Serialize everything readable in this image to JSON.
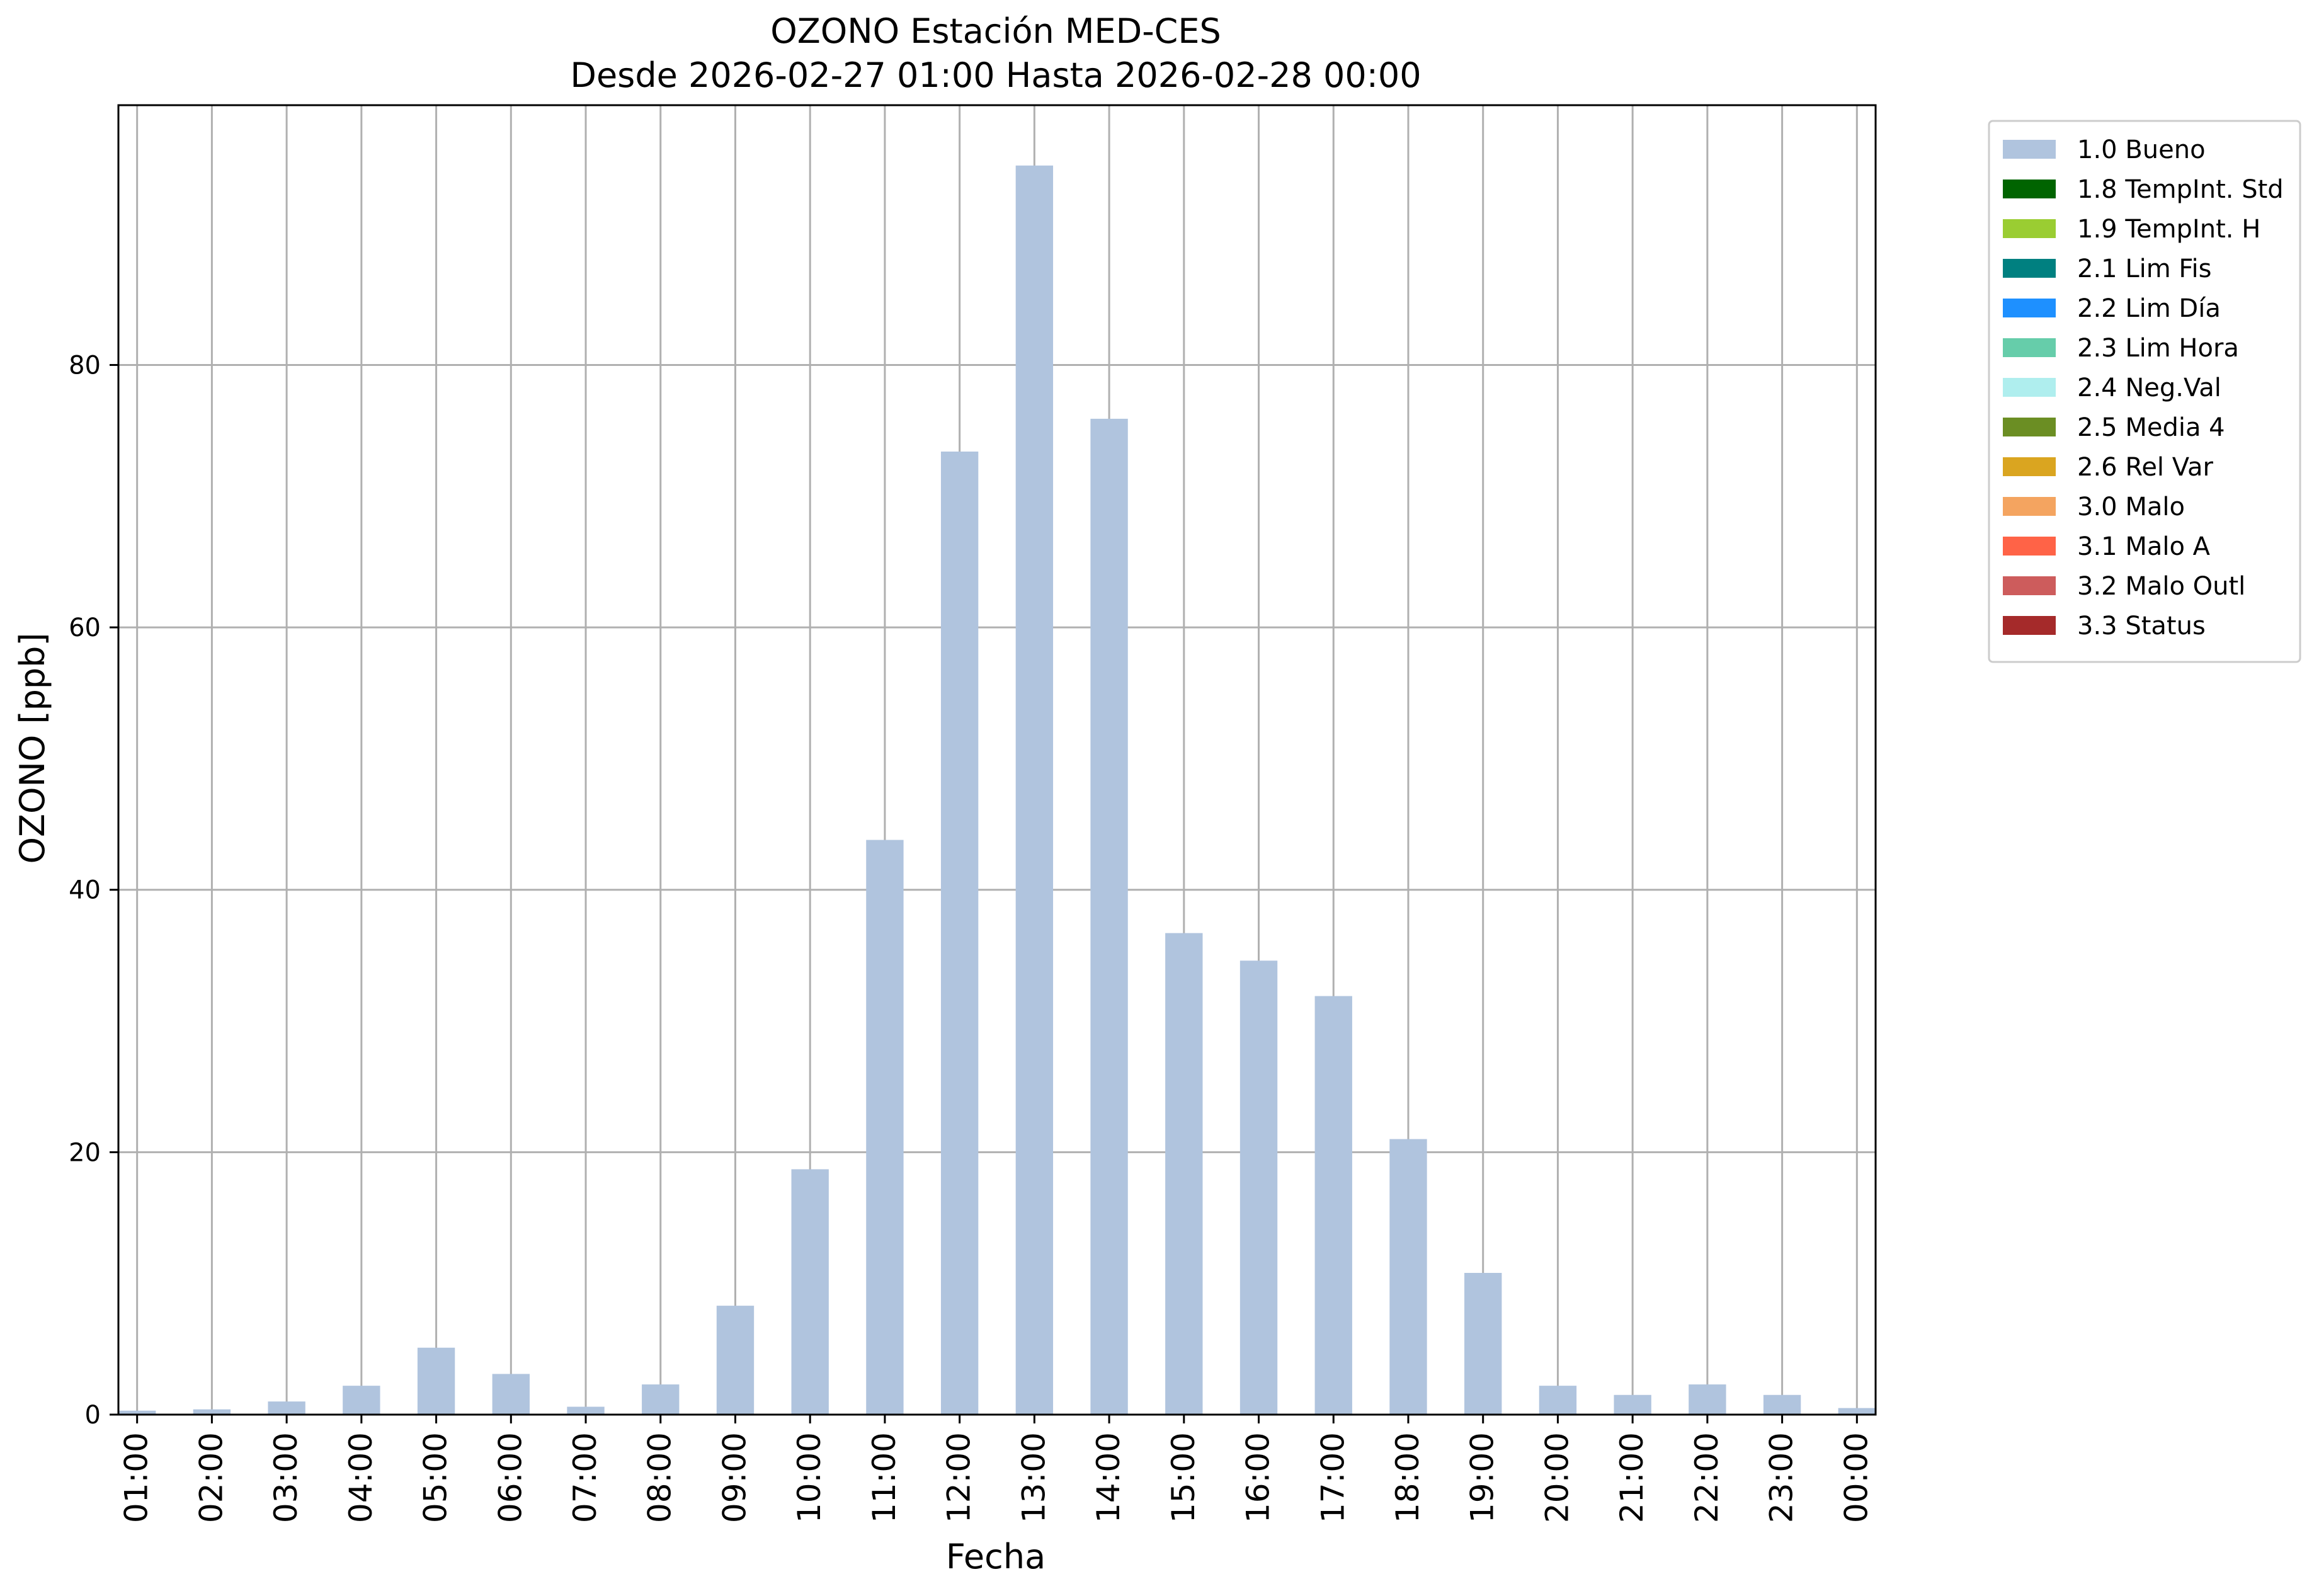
{
  "chart_data": {
    "type": "bar",
    "title_line1": "OZONO Estación MED-CES",
    "title_line2": "Desde 2026-02-27 01:00 Hasta 2026-02-28 00:00",
    "xlabel": "Fecha",
    "ylabel": "OZONO [ppb]",
    "categories": [
      "01:00",
      "02:00",
      "03:00",
      "04:00",
      "05:00",
      "06:00",
      "07:00",
      "08:00",
      "09:00",
      "10:00",
      "11:00",
      "12:00",
      "13:00",
      "14:00",
      "15:00",
      "16:00",
      "17:00",
      "18:00",
      "19:00",
      "20:00",
      "21:00",
      "22:00",
      "23:00",
      "00:00"
    ],
    "series": [
      {
        "name": "1.0 Bueno",
        "color": "#b0c4de",
        "values": [
          0.3,
          0.4,
          1.0,
          2.2,
          5.1,
          3.1,
          0.6,
          2.3,
          8.3,
          18.7,
          43.8,
          73.4,
          95.2,
          75.9,
          36.7,
          34.6,
          31.9,
          21.0,
          10.8,
          2.2,
          1.5,
          2.3,
          1.5,
          0.5
        ]
      }
    ],
    "ylim": [
      0,
      99.8
    ],
    "yticks": [
      0,
      20,
      40,
      60,
      80
    ],
    "grid": true,
    "legend_position": "outside-right-top",
    "legend": [
      {
        "label": "1.0 Bueno",
        "color": "#b0c4de"
      },
      {
        "label": "1.8 TempInt. Std",
        "color": "#006400"
      },
      {
        "label": "1.9 TempInt. H",
        "color": "#9acd32"
      },
      {
        "label": "2.1 Lim Fis",
        "color": "#008080"
      },
      {
        "label": "2.2 Lim Día",
        "color": "#1e90ff"
      },
      {
        "label": "2.3 Lim Hora",
        "color": "#66cdaa"
      },
      {
        "label": "2.4 Neg.Val",
        "color": "#afeeee"
      },
      {
        "label": "2.5 Media 4",
        "color": "#6b8e23"
      },
      {
        "label": "2.6 Rel Var",
        "color": "#daa520"
      },
      {
        "label": "3.0 Malo",
        "color": "#f4a460"
      },
      {
        "label": "3.1 Malo A",
        "color": "#ff6347"
      },
      {
        "label": "3.2 Malo Outl",
        "color": "#cd5c5c"
      },
      {
        "label": "3.3 Status",
        "color": "#a52a2a"
      }
    ]
  }
}
